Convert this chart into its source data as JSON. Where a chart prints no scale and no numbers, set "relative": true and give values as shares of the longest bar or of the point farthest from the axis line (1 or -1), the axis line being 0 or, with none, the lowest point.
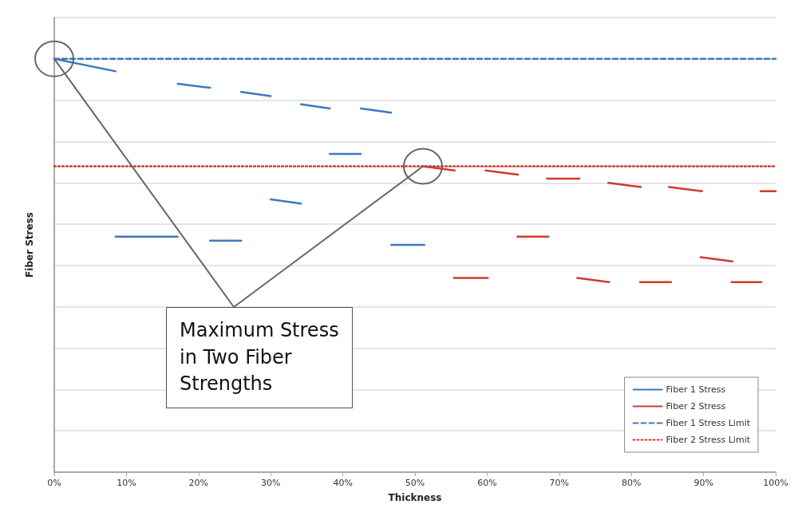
{
  "chart_data": {
    "type": "line",
    "xlabel": "Thickness",
    "ylabel": "Fiber Stress",
    "relative": true,
    "grid": "y",
    "legend": "bottom right",
    "marker": "none",
    "xlim": [
      0,
      100
    ],
    "xticks": [
      {
        "value": 0,
        "label": "0%"
      },
      {
        "value": 10,
        "label": "10%"
      },
      {
        "value": 20,
        "label": "20%"
      },
      {
        "value": 30,
        "label": "30%"
      },
      {
        "value": 40,
        "label": "40%"
      },
      {
        "value": 50,
        "label": "50%"
      },
      {
        "value": 60,
        "label": "60%"
      },
      {
        "value": 70,
        "label": "70%"
      },
      {
        "value": 80,
        "label": "80%"
      },
      {
        "value": 90,
        "label": "90%"
      },
      {
        "value": 100,
        "label": "100%"
      }
    ],
    "annotations": [
      "Maximum Stress in Two Fiber Strengths"
    ],
    "series": [
      {
        "name": "Fiber 1 Stress",
        "color": "#3c78c0",
        "line_style": "solid",
        "x": [
          0,
          8.5
        ],
        "values": [
          1.0,
          0.97
        ]
      },
      {
        "name": "Fiber 2 Stress",
        "color": "#d03a30",
        "line_style": "solid",
        "x": [
          51.1,
          55.5
        ],
        "values": [
          0.74,
          0.73
        ]
      },
      {
        "name": "Fiber 1 Stress Limit",
        "color": "#3c78c0",
        "line_style": "dashed",
        "x": [
          0,
          100
        ],
        "values": [
          1.0,
          1.0
        ]
      },
      {
        "name": "Fiber 2 Stress Limit",
        "color": "#d03a30",
        "line_style": "dotted",
        "x": [
          0,
          100
        ],
        "values": [
          0.74,
          0.74
        ]
      },
      {
        "color": "#3c78c0",
        "line_style": "solid",
        "x": [
          17.1,
          21.6
        ],
        "values": [
          0.94,
          0.93
        ]
      },
      {
        "color": "#3c78c0",
        "line_style": "solid",
        "x": [
          25.9,
          30
        ],
        "values": [
          0.92,
          0.91
        ]
      },
      {
        "color": "#3c78c0",
        "line_style": "solid",
        "x": [
          34.2,
          38.2
        ],
        "values": [
          0.89,
          0.88
        ]
      },
      {
        "color": "#3c78c0",
        "line_style": "solid",
        "x": [
          42.5,
          46.7
        ],
        "values": [
          0.88,
          0.87
        ]
      },
      {
        "color": "#3c78c0",
        "line_style": "solid",
        "x": [
          8.5,
          17.1
        ],
        "values": [
          0.57,
          0.57
        ]
      },
      {
        "color": "#3c78c0",
        "line_style": "solid",
        "x": [
          21.6,
          25.9
        ],
        "values": [
          0.56,
          0.56
        ]
      },
      {
        "color": "#3c78c0",
        "line_style": "solid",
        "x": [
          30,
          34.2
        ],
        "values": [
          0.66,
          0.65
        ]
      },
      {
        "color": "#3c78c0",
        "line_style": "solid",
        "x": [
          38.2,
          42.5
        ],
        "values": [
          0.77,
          0.77
        ]
      },
      {
        "color": "#3c78c0",
        "line_style": "solid",
        "x": [
          46.7,
          51.3
        ],
        "values": [
          0.55,
          0.55
        ]
      },
      {
        "color": "#d03a30",
        "line_style": "solid",
        "x": [
          59.8,
          64.3
        ],
        "values": [
          0.73,
          0.72
        ]
      },
      {
        "color": "#d03a30",
        "line_style": "solid",
        "x": [
          68.3,
          72.8
        ],
        "values": [
          0.71,
          0.71
        ]
      },
      {
        "color": "#d03a30",
        "line_style": "solid",
        "x": [
          76.8,
          81.3
        ],
        "values": [
          0.7,
          0.69
        ]
      },
      {
        "color": "#d03a30",
        "line_style": "solid",
        "x": [
          85.2,
          89.8
        ],
        "values": [
          0.69,
          0.68
        ]
      },
      {
        "color": "#d03a30",
        "line_style": "solid",
        "x": [
          97.9,
          100
        ],
        "values": [
          0.68,
          0.68
        ]
      },
      {
        "color": "#d03a30",
        "line_style": "solid",
        "x": [
          55.4,
          60.1
        ],
        "values": [
          0.47,
          0.47
        ]
      },
      {
        "color": "#d03a30",
        "line_style": "solid",
        "x": [
          64.2,
          68.5
        ],
        "values": [
          0.57,
          0.57
        ]
      },
      {
        "color": "#d03a30",
        "line_style": "solid",
        "x": [
          72.5,
          76.9
        ],
        "values": [
          0.47,
          0.46
        ]
      },
      {
        "color": "#d03a30",
        "line_style": "solid",
        "x": [
          81.2,
          85.5
        ],
        "values": [
          0.46,
          0.46
        ]
      },
      {
        "color": "#d03a30",
        "line_style": "solid",
        "x": [
          89.6,
          94
        ],
        "values": [
          0.52,
          0.51
        ]
      },
      {
        "color": "#d03a30",
        "line_style": "solid",
        "x": [
          93.9,
          98
        ],
        "values": [
          0.46,
          0.46
        ]
      }
    ]
  }
}
